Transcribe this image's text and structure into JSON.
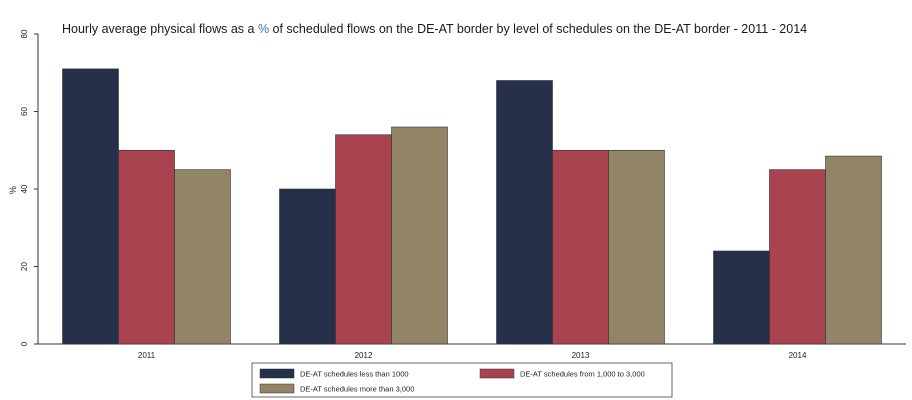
{
  "chart_data": {
    "type": "bar",
    "title_parts": [
      "Hourly average physical flows as a ",
      "%",
      " of scheduled flows on the DE-AT border by level of schedules on the DE-AT border - 2011 - 2014"
    ],
    "ylabel": "%",
    "ylim": [
      0,
      80
    ],
    "yticks": [
      0,
      20,
      40,
      60,
      80
    ],
    "categories": [
      "2011",
      "2012",
      "2013",
      "2014"
    ],
    "series": [
      {
        "name": "DE-AT schedules less than 1000",
        "color": "#27304a",
        "values": [
          71,
          40,
          68,
          24
        ]
      },
      {
        "name": "DE-AT schedules from 1,000 to 3,000",
        "color": "#a8434f",
        "values": [
          50,
          54,
          50,
          45
        ]
      },
      {
        "name": "DE-AT schedules more than 3,000",
        "color": "#928567",
        "values": [
          45,
          56,
          50,
          48.5
        ]
      }
    ],
    "legend_position": "bottom",
    "grid": false
  }
}
